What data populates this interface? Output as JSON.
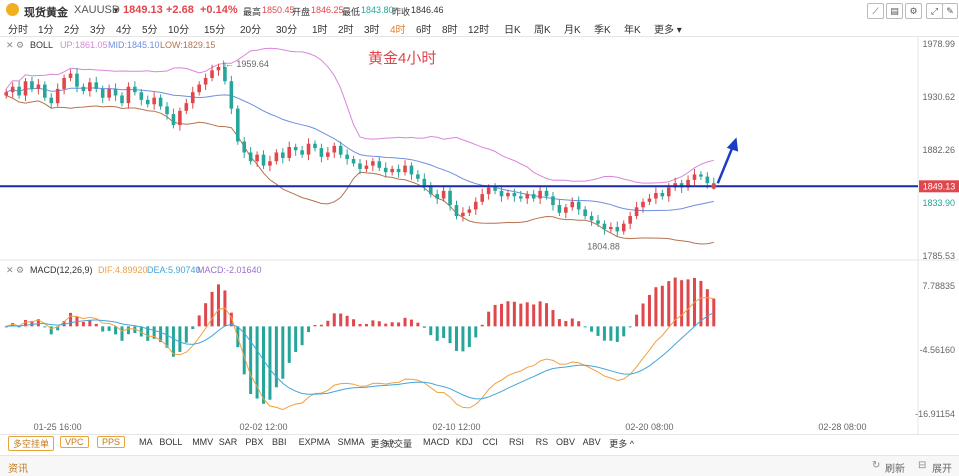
{
  "header": {
    "name": "现货黄金",
    "symbol": "XAUUSD",
    "price": "1849.13",
    "change": "+2.68",
    "change_pct": "+0.14%",
    "high_label": "最高",
    "high": "1850.45",
    "open_label": "开盘",
    "open": "1846.25",
    "low_label": "最低",
    "low": "1843.80",
    "prev_label": "昨收",
    "prev": "1846.46"
  },
  "timeframes": [
    "分时",
    "1分",
    "2分",
    "3分",
    "4分",
    "5分",
    "10分",
    "15分",
    "20分",
    "30分",
    "1时",
    "2时",
    "3时",
    "4时",
    "6时",
    "8时",
    "12时",
    "日K",
    "周K",
    "月K",
    "季K",
    "年K",
    "更多"
  ],
  "active_timeframe": "4时",
  "boll": {
    "name": "BOLL",
    "up": "UP:1861.05",
    "mid": "MID:1845.10",
    "low": "LOW:1829.15"
  },
  "macd": {
    "name": "MACD(12,26,9)",
    "dif": "DIF:4.89920",
    "dea": "DEA:5.90740",
    "macd": "MACD:-2.01640"
  },
  "annotation_title": "黄金4小时",
  "bottom_tools": {
    "tags": [
      "多空挂单",
      "VPC",
      "PPS"
    ],
    "main_indicators": [
      "MA",
      "BOLL",
      "MMV",
      "SAR",
      "PBX",
      "BBI",
      "EXPMA",
      "SMMA",
      "更多"
    ],
    "sub_indicators": [
      "成交量",
      "MACD",
      "KDJ",
      "CCI",
      "RSI",
      "RS",
      "OBV",
      "ABV",
      "更多"
    ],
    "refresh": "刷新",
    "expand": "展开"
  },
  "news_label": "资讯",
  "colors": {
    "up": "#e0474c",
    "down": "#26a69a",
    "boll_up": "#d986d9",
    "boll_mid": "#6f8ee0",
    "boll_low": "#b5734f",
    "dif": "#f0a040",
    "dea": "#42a5d8",
    "hline": "#1a2aa8",
    "arrow": "#1a3ec2"
  },
  "chart_data": [
    {
      "type": "candlestick",
      "ylim": [
        1785.53,
        1978.99
      ],
      "y_ticks": [
        "1978.99",
        "1930.62",
        "1882.26",
        "1833.90",
        "1785.53"
      ],
      "x_ticks": [
        "01-25 16:00",
        "02-02 12:00",
        "02-10 12:00",
        "02-20 08:00",
        "02-28 08:00"
      ],
      "current_price_tag": "1849.13",
      "hline": 1849.13,
      "max_label": "1959.64",
      "min_label": "1804.88",
      "close": [
        1935,
        1940,
        1932,
        1945,
        1938,
        1942,
        1930,
        1925,
        1938,
        1948,
        1952,
        1940,
        1936,
        1944,
        1938,
        1930,
        1938,
        1932,
        1925,
        1940,
        1935,
        1928,
        1924,
        1930,
        1922,
        1915,
        1905,
        1918,
        1925,
        1935,
        1942,
        1948,
        1955,
        1958,
        1945,
        1920,
        1890,
        1880,
        1872,
        1878,
        1868,
        1872,
        1880,
        1875,
        1885,
        1882,
        1878,
        1888,
        1884,
        1876,
        1880,
        1886,
        1878,
        1874,
        1870,
        1865,
        1868,
        1872,
        1866,
        1862,
        1865,
        1862,
        1868,
        1860,
        1856,
        1850,
        1842,
        1838,
        1845,
        1832,
        1822,
        1825,
        1828,
        1835,
        1842,
        1848,
        1845,
        1840,
        1843,
        1840,
        1838,
        1842,
        1838,
        1845,
        1840,
        1832,
        1825,
        1830,
        1835,
        1828,
        1822,
        1818,
        1815,
        1810,
        1812,
        1808,
        1815,
        1822,
        1830,
        1835,
        1838,
        1843,
        1840,
        1848,
        1852,
        1848,
        1855,
        1860,
        1858,
        1852,
        1849
      ]
    },
    {
      "type": "bar+line",
      "ylim": [
        -16.91154,
        7.78835
      ],
      "y_ticks": [
        "7.78835",
        "-4.56160",
        "-16.91154"
      ],
      "hist_scale": 0.04
    }
  ]
}
